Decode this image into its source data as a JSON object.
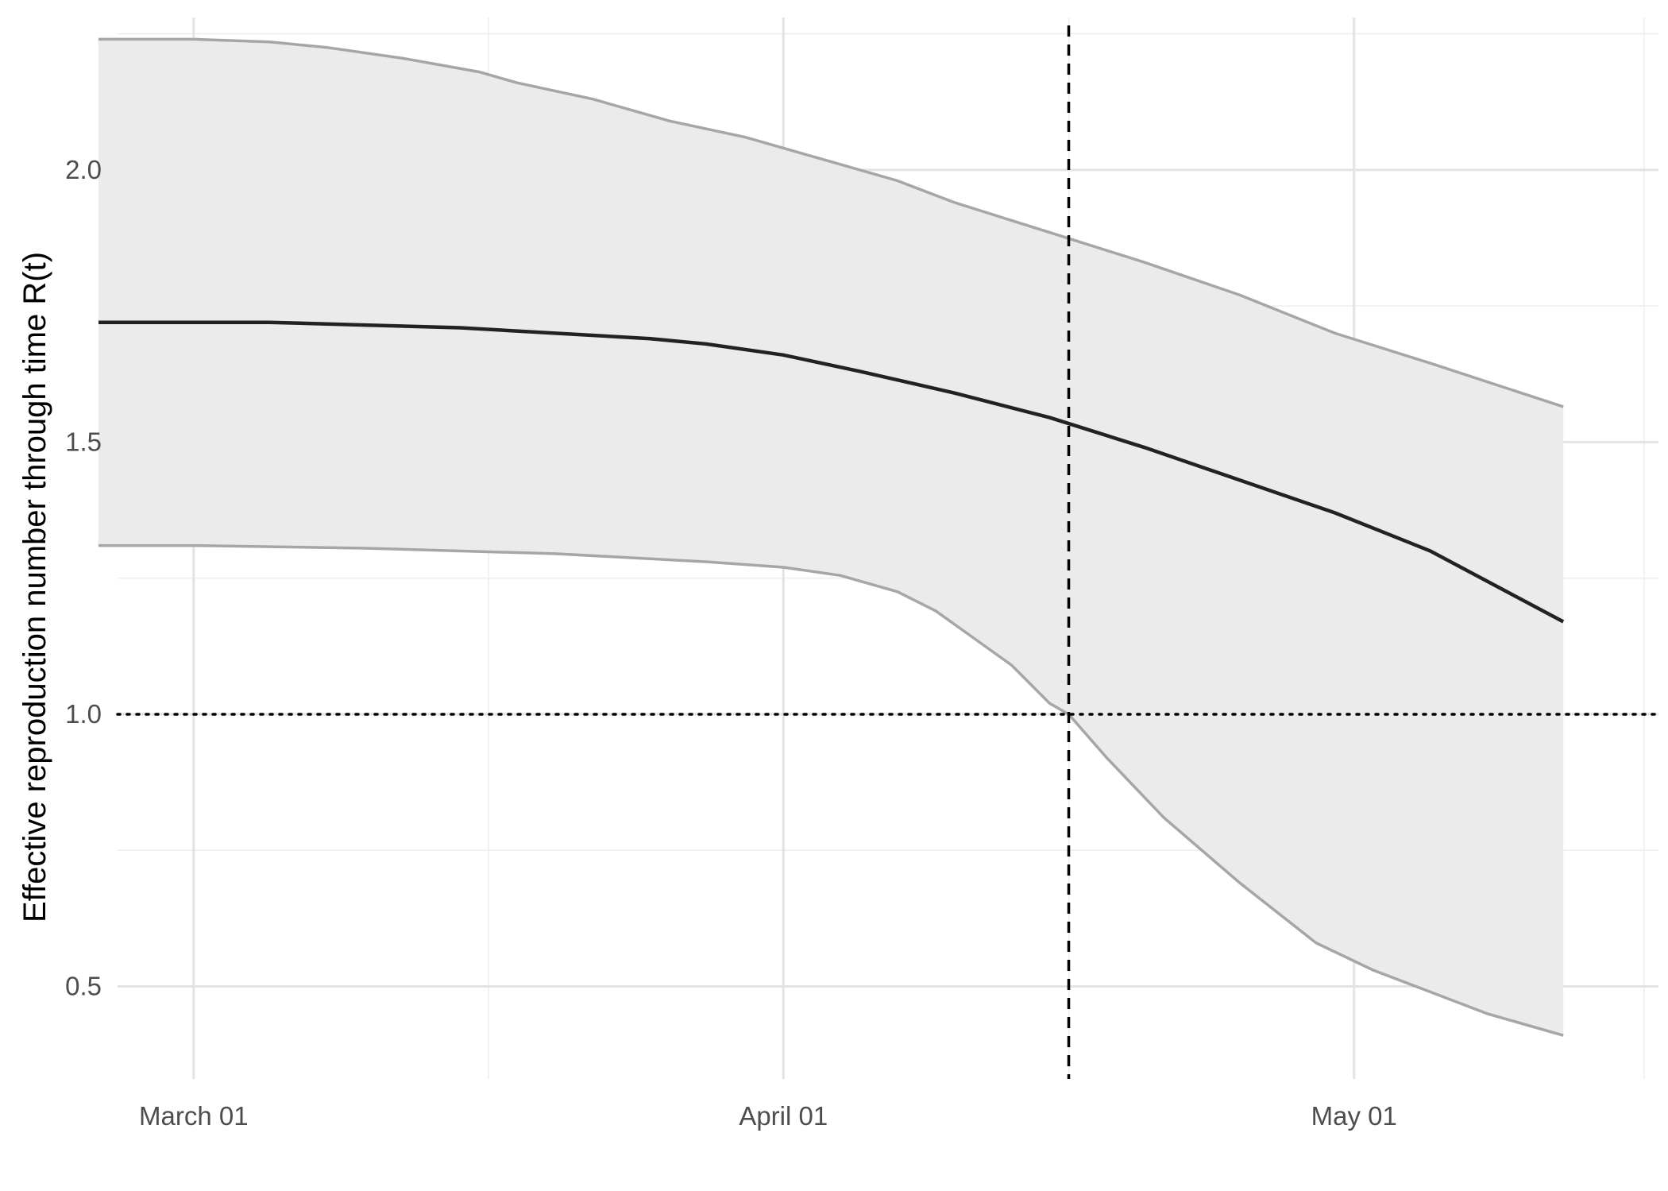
{
  "chart_data": {
    "type": "line",
    "title": "",
    "xlabel": "",
    "ylabel": "Effective reproduction number through time R(t)",
    "x_axis": {
      "type": "date",
      "range": [
        "2020-02-26",
        "2020-05-17"
      ],
      "ticks": [
        {
          "value": "2020-03-01",
          "label": "March 01"
        },
        {
          "value": "2020-04-01",
          "label": "April 01"
        },
        {
          "value": "2020-05-01",
          "label": "May 01"
        }
      ]
    },
    "y_axis": {
      "range": [
        0.33,
        2.28
      ],
      "ticks": [
        {
          "value": 0.5,
          "label": "0.5"
        },
        {
          "value": 1.0,
          "label": "1.0"
        },
        {
          "value": 1.5,
          "label": "1.5"
        },
        {
          "value": 2.0,
          "label": "2.0"
        }
      ]
    },
    "grid": true,
    "legend": "none",
    "reference_lines": {
      "horizontal": {
        "y": 1.0,
        "style": "dotted"
      },
      "vertical": {
        "x": "2020-04-16",
        "style": "dashed"
      }
    },
    "series": [
      {
        "role": "median",
        "color": "#222222",
        "x": [
          "2020-02-25",
          "2020-03-01",
          "2020-03-05",
          "2020-03-10",
          "2020-03-15",
          "2020-03-20",
          "2020-03-25",
          "2020-03-28",
          "2020-04-01",
          "2020-04-05",
          "2020-04-10",
          "2020-04-15",
          "2020-04-20",
          "2020-04-25",
          "2020-04-30",
          "2020-05-05",
          "2020-05-12"
        ],
        "y": [
          1.72,
          1.72,
          1.72,
          1.715,
          1.71,
          1.7,
          1.69,
          1.68,
          1.66,
          1.63,
          1.59,
          1.545,
          1.49,
          1.43,
          1.37,
          1.3,
          1.17
        ]
      },
      {
        "role": "upper_bound",
        "color": "#a6a6a6",
        "x": [
          "2020-02-25",
          "2020-03-01",
          "2020-03-05",
          "2020-03-08",
          "2020-03-12",
          "2020-03-16",
          "2020-03-18",
          "2020-03-22",
          "2020-03-26",
          "2020-03-30",
          "2020-04-03",
          "2020-04-07",
          "2020-04-10",
          "2020-04-15",
          "2020-04-20",
          "2020-04-25",
          "2020-04-30",
          "2020-05-05",
          "2020-05-12"
        ],
        "y": [
          2.24,
          2.24,
          2.235,
          2.225,
          2.205,
          2.18,
          2.16,
          2.13,
          2.09,
          2.06,
          2.02,
          1.98,
          1.94,
          1.885,
          1.83,
          1.77,
          1.7,
          1.645,
          1.565
        ]
      },
      {
        "role": "lower_bound",
        "color": "#a6a6a6",
        "x": [
          "2020-02-25",
          "2020-03-01",
          "2020-03-10",
          "2020-03-20",
          "2020-03-28",
          "2020-04-01",
          "2020-04-04",
          "2020-04-07",
          "2020-04-09",
          "2020-04-11",
          "2020-04-13",
          "2020-04-15",
          "2020-04-16",
          "2020-04-18",
          "2020-04-21",
          "2020-04-25",
          "2020-04-29",
          "2020-05-02",
          "2020-05-05",
          "2020-05-08",
          "2020-05-12"
        ],
        "y": [
          1.31,
          1.31,
          1.305,
          1.295,
          1.28,
          1.27,
          1.255,
          1.225,
          1.19,
          1.14,
          1.09,
          1.02,
          1.0,
          0.92,
          0.81,
          0.69,
          0.58,
          0.53,
          0.49,
          0.45,
          0.41
        ]
      }
    ]
  }
}
